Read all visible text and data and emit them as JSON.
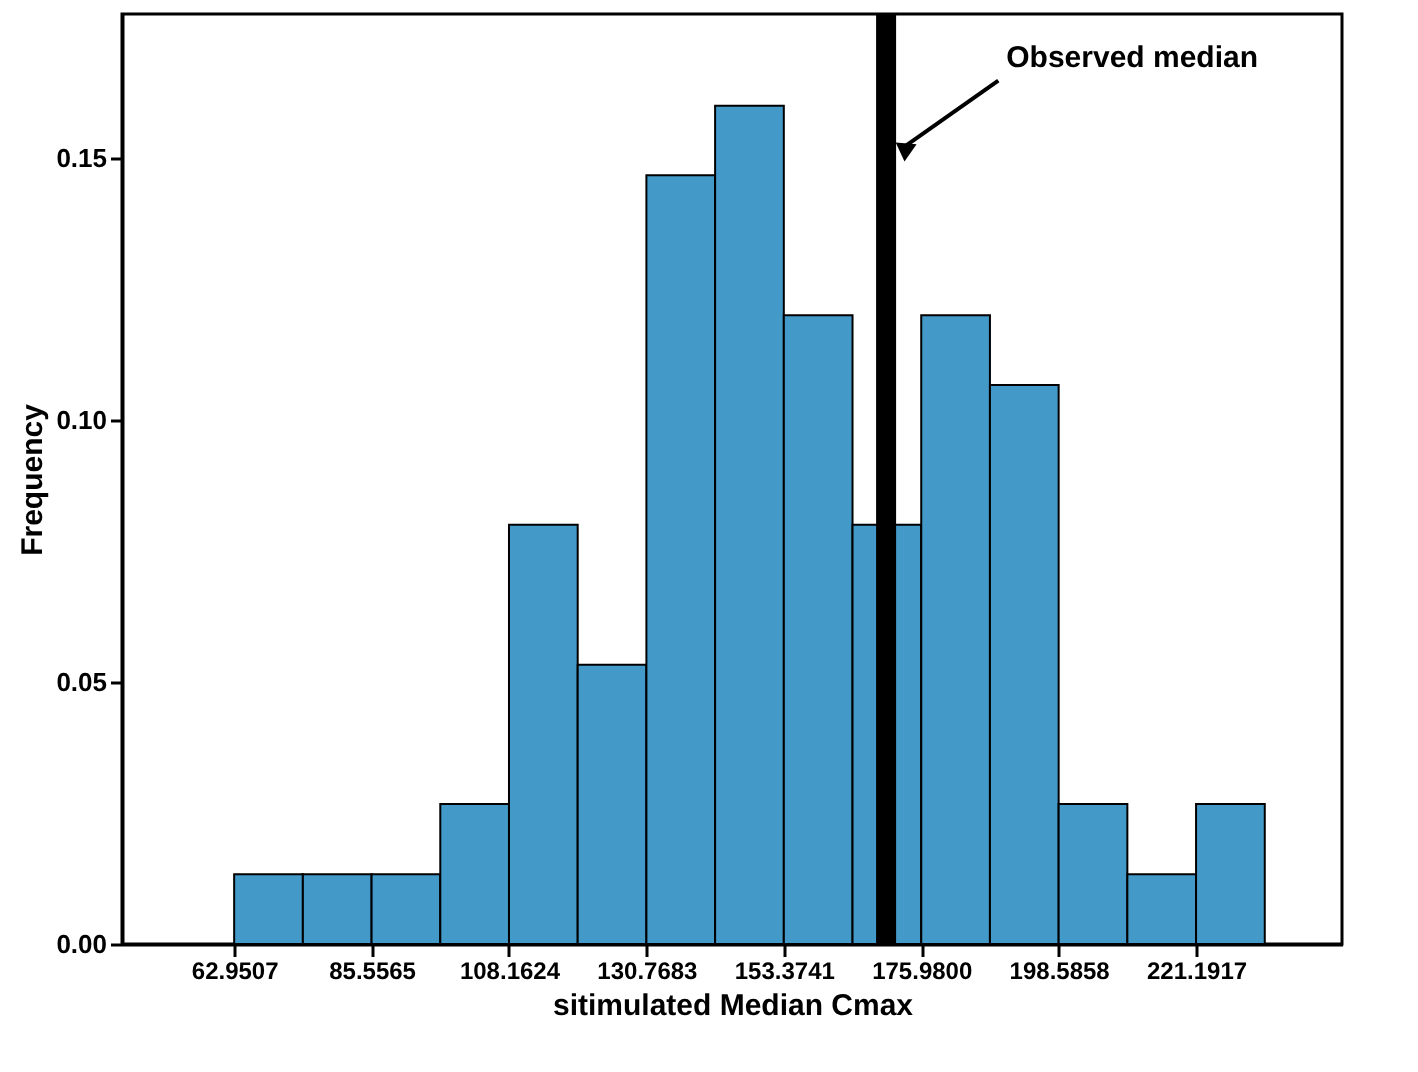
{
  "chart_data": {
    "type": "histogram",
    "xlabel": "sitimulated Median Cmax",
    "ylabel": "Frequency",
    "bins": [
      62.9507,
      74.2536,
      85.5565,
      96.8595,
      108.1624,
      119.4653,
      130.7683,
      142.0712,
      153.3741,
      164.6771,
      175.98,
      187.2829,
      198.5858,
      209.8888,
      221.1917,
      232.4946
    ],
    "values": [
      0.0133,
      0.0133,
      0.0133,
      0.0267,
      0.08,
      0.0533,
      0.1467,
      0.16,
      0.12,
      0.08,
      0.12,
      0.1067,
      0.0267,
      0.0133,
      0.0267
    ],
    "color": "#4399c8",
    "xlim": [
      44.5,
      245.2
    ],
    "ylim": [
      0,
      0.1775
    ],
    "xticks": [
      62.9507,
      85.5565,
      108.1624,
      130.7683,
      153.3741,
      {
        "value": 175.98,
        "label": "175.9800"
      },
      198.5858,
      221.1917
    ],
    "yticks": [
      {
        "value": 0,
        "label": "0.00"
      },
      {
        "value": 0.05,
        "label": "0.05"
      },
      {
        "value": 0.1,
        "label": "0.10"
      },
      {
        "value": 0.15,
        "label": "0.15"
      }
    ],
    "ref_lines": [
      {
        "axis": "x",
        "value": 170.2,
        "color": "#000000"
      }
    ],
    "annotations": [
      {
        "text": "Observed median",
        "x": 173.0,
        "y": 0.152
      }
    ],
    "grid": false
  }
}
